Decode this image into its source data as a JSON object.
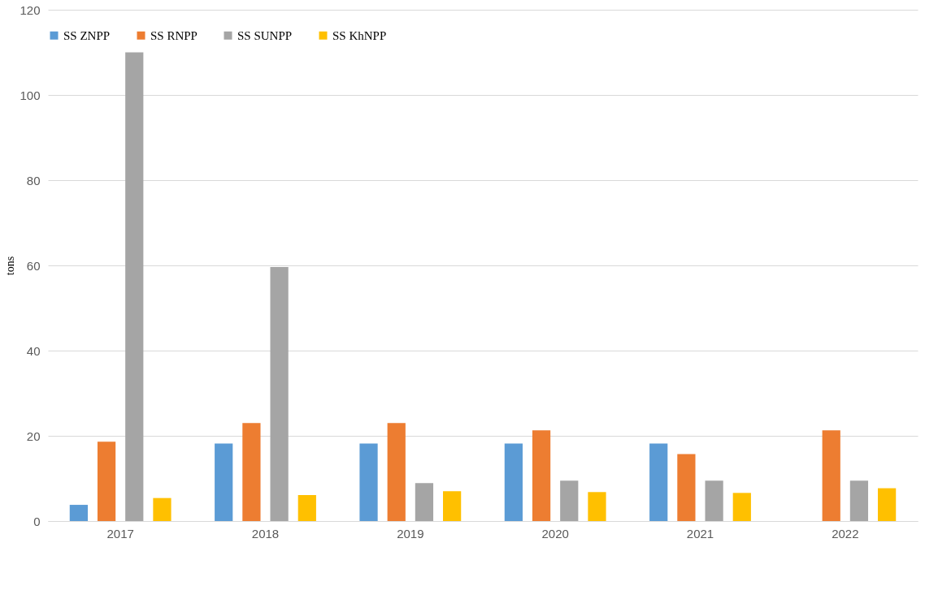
{
  "chart_data": {
    "type": "bar",
    "ylabel": "tons",
    "categories": [
      "2017",
      "2018",
      "2019",
      "2020",
      "2021",
      "2022"
    ],
    "series": [
      {
        "name": "SS ZNPP",
        "color": "#5b9bd5",
        "values": [
          3.8,
          18.2,
          18.2,
          18.2,
          18.2,
          null
        ]
      },
      {
        "name": "SS RNPP",
        "color": "#ed7d31",
        "values": [
          18.6,
          23,
          23,
          21.3,
          15.7,
          21.3
        ]
      },
      {
        "name": "SS SUNPP",
        "color": "#a5a5a5",
        "values": [
          110,
          59.6,
          8.9,
          9.5,
          9.5,
          9.5
        ]
      },
      {
        "name": "SS KhNPP",
        "color": "#ffc000",
        "values": [
          5.4,
          6.1,
          7,
          6.8,
          6.6,
          7.7
        ]
      }
    ],
    "ylim": [
      0,
      120
    ],
    "yticks": [
      0,
      20,
      40,
      60,
      80,
      100,
      120
    ],
    "grid": "y",
    "legend": "top"
  }
}
